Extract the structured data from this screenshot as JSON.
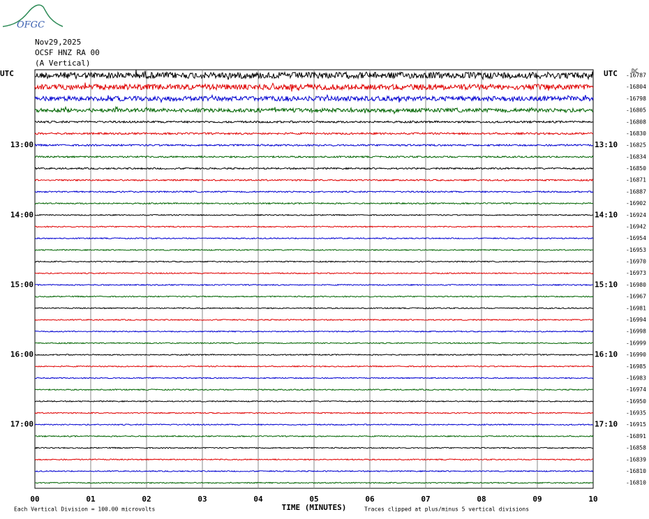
{
  "logo": "OFGC",
  "header": {
    "date": "Nov29,2025",
    "station": "OCSF HNZ RA 00",
    "component": "(A Vertical)"
  },
  "left_axis_label": "UTC",
  "right_axis_label": "UTC",
  "left_times": [
    "13:00",
    "14:00",
    "15:00",
    "16:00",
    "17:00"
  ],
  "right_times": [
    "13:10",
    "14:10",
    "15:10",
    "16:10",
    "17:10"
  ],
  "dc_label": "DC",
  "offsets": [
    -16787,
    -16804,
    -16798,
    -16805,
    -16808,
    -16830,
    -16825,
    -16834,
    -16850,
    -16871,
    -16887,
    -16902,
    -16924,
    -16942,
    -16954,
    -16953,
    -16970,
    -16973,
    -16980,
    -16967,
    -16981,
    -16994,
    -16998,
    -16999,
    -16990,
    -16985,
    -16983,
    -16974,
    -16950,
    -16935,
    -16915,
    -16891,
    -16858,
    -16839,
    -16810,
    -16810
  ],
  "trace_colors": [
    "#000000",
    "#e00000",
    "#0000d0",
    "#006400"
  ],
  "xticks": [
    "00",
    "01",
    "02",
    "03",
    "04",
    "05",
    "06",
    "07",
    "08",
    "09",
    "10"
  ],
  "x_label": "TIME (MINUTES)",
  "footer_left": "Each Vertical Division =  100.00 microvolts",
  "footer_right": "Traces clipped at plus/minus 5 vertical divisions"
}
